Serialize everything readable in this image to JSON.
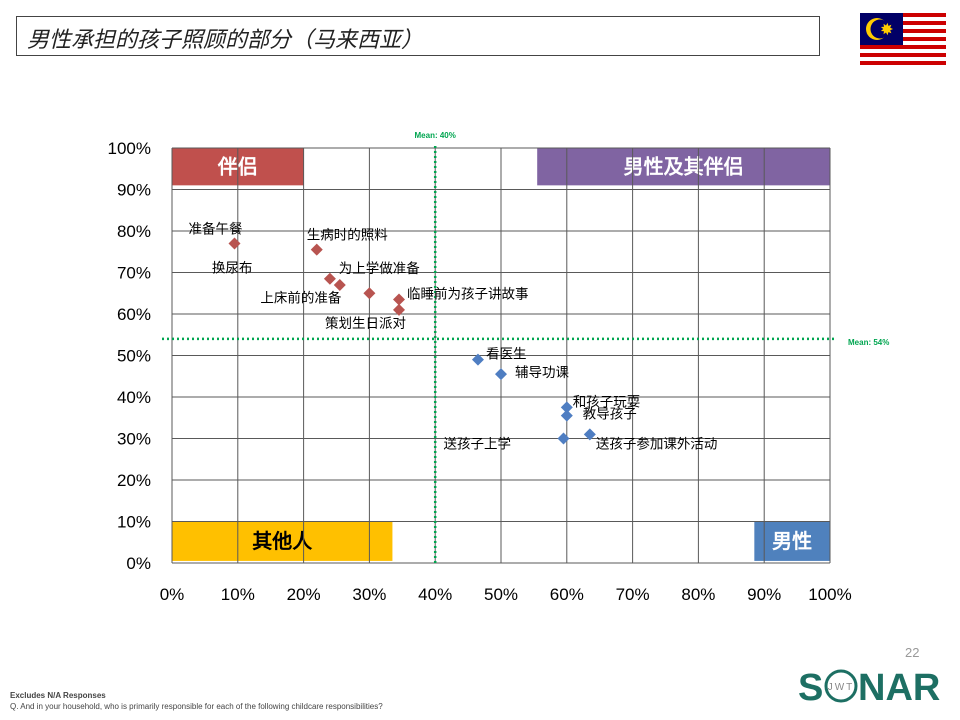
{
  "title": "男性承担的孩子照顾的部分（马来西亚）",
  "page_number": "22",
  "footnotes": {
    "line1": "Excludes N/A Responses",
    "line2": "Q. And in your household, who is primarily responsible for each of the following childcare responsibilities?"
  },
  "logo": {
    "letters_left": "S",
    "letters_right": "NAR",
    "inner": "JWT"
  },
  "colors": {
    "partner_series": "#B85450",
    "male_series": "#4F7EC2",
    "partner_box": "#C0504D",
    "both_box": "#8064A2",
    "others_box": "#FFC000",
    "male_box": "#4F81BD",
    "mean_line": "#00A550",
    "grid": "#595959",
    "logo_green": "#1D6F63"
  },
  "chart_data": {
    "type": "scatter",
    "title": "",
    "xlabel": "",
    "ylabel": "",
    "xlim": [
      0,
      100
    ],
    "ylim": [
      0,
      100
    ],
    "x_ticks": [
      "0%",
      "10%",
      "20%",
      "30%",
      "40%",
      "50%",
      "60%",
      "70%",
      "80%",
      "90%",
      "100%"
    ],
    "y_ticks": [
      "0%",
      "10%",
      "20%",
      "30%",
      "40%",
      "50%",
      "60%",
      "70%",
      "80%",
      "90%",
      "100%"
    ],
    "grid": true,
    "mean_x": {
      "value": 40,
      "label": "Mean: 40%"
    },
    "mean_y": {
      "value": 54,
      "label": "Mean: 54%"
    },
    "quadrant_labels": {
      "top_left": "伴侣",
      "top_right": "男性及其伴侣",
      "bottom_left": "其他人",
      "bottom_right": "男性"
    },
    "series": [
      {
        "points": [
          {
            "label": "准备午餐",
            "x": 9.5,
            "y": 77
          },
          {
            "label": "生病时的照料",
            "x": 22,
            "y": 75.5
          },
          {
            "label": "换尿布",
            "x": 24,
            "y": 68.5
          },
          {
            "label": "为上学做准备",
            "x": 25.5,
            "y": 67
          },
          {
            "label": "上床前的准备",
            "x": 30,
            "y": 65
          },
          {
            "label": "临睡前为孩子讲故事",
            "x": 34.5,
            "y": 63.5
          },
          {
            "label": "策划生日派对",
            "x": 34.5,
            "y": 61
          }
        ]
      },
      {
        "points": [
          {
            "label": "看医生",
            "x": 46.5,
            "y": 49
          },
          {
            "label": "辅导功课",
            "x": 50,
            "y": 45.5
          },
          {
            "label": "和孩子玩耍",
            "x": 60,
            "y": 37.5
          },
          {
            "label": "教导孩子",
            "x": 60,
            "y": 35.5
          },
          {
            "label": "送孩子上学",
            "x": 59.5,
            "y": 30
          },
          {
            "label": "送孩子参加课外活动",
            "x": 63.5,
            "y": 31
          }
        ]
      }
    ]
  }
}
